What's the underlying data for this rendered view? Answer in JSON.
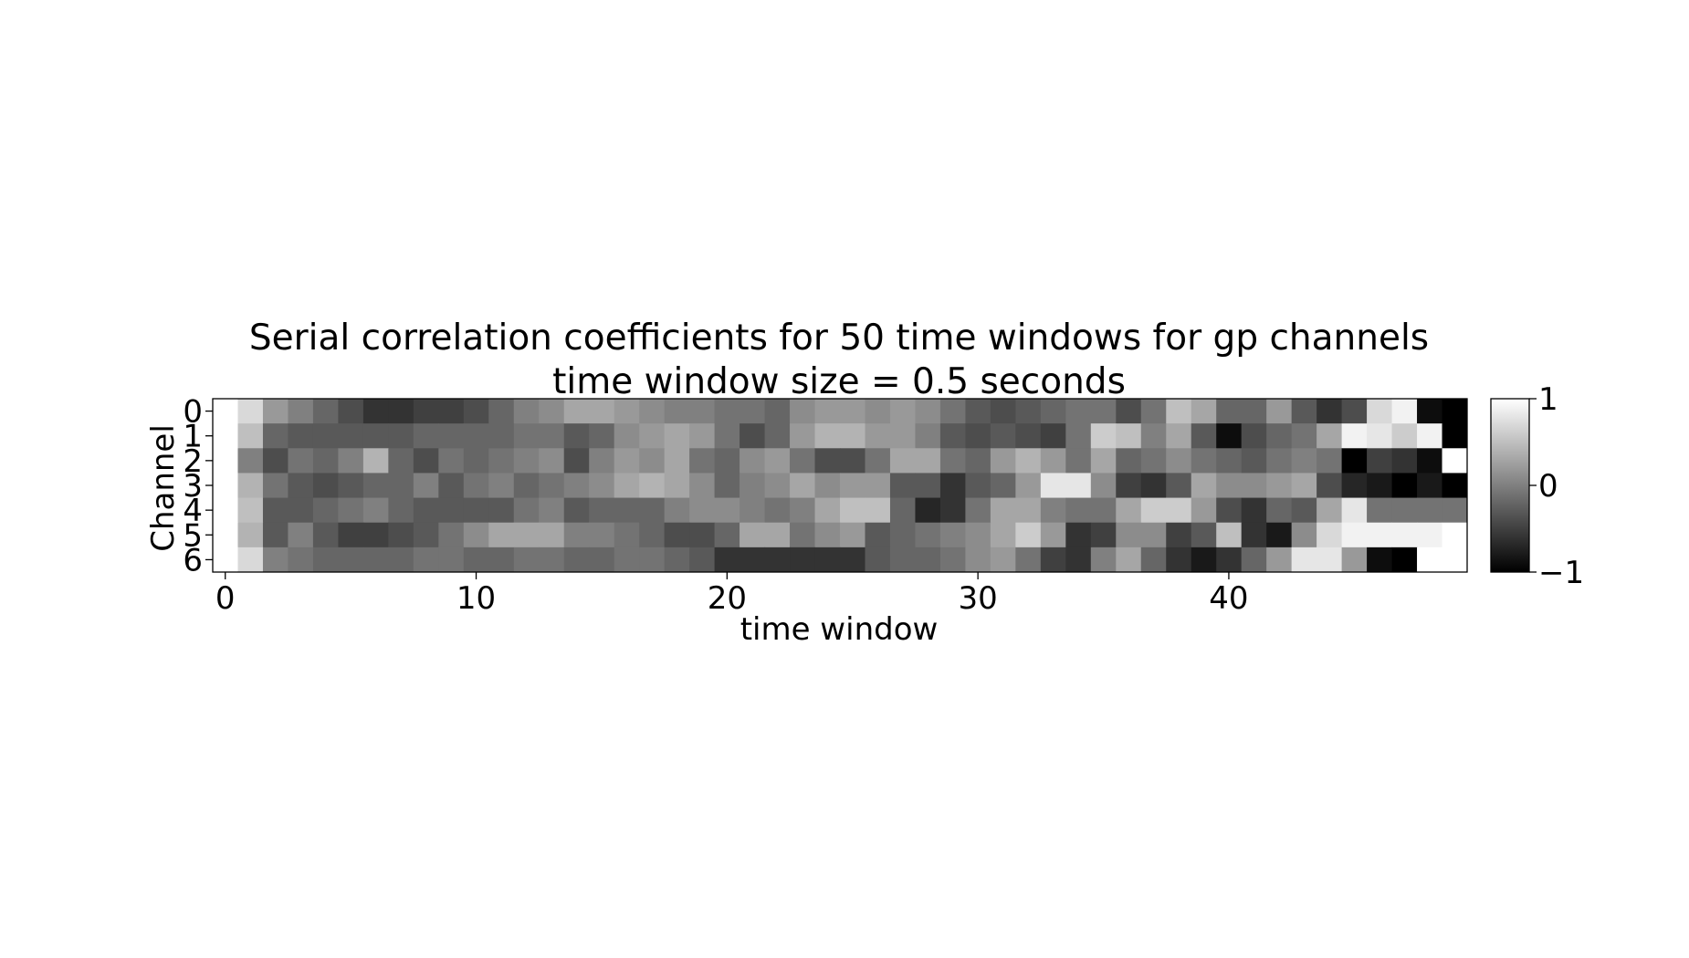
{
  "chart_data": {
    "type": "heatmap",
    "title": "Serial correlation coefficients for 50 time windows for gp channels\ntime window size = 0.5 seconds",
    "title_lines": [
      "Serial correlation coefficients for 50 time windows for gp channels",
      "time window size = 0.5 seconds"
    ],
    "xlabel": "time window",
    "ylabel": "Channel",
    "x_ticks": [
      0,
      10,
      20,
      30,
      40
    ],
    "y_ticks": [
      0,
      1,
      2,
      3,
      4,
      5,
      6
    ],
    "xlim": [
      -0.5,
      49.5
    ],
    "ylim": [
      6.5,
      -0.5
    ],
    "colormap": "gray",
    "colorbar": {
      "vmin": -1,
      "vmax": 1,
      "ticks": [
        1,
        0,
        -1
      ],
      "tick_labels": [
        "1",
        "0",
        "−1"
      ]
    },
    "rows": [
      [
        1.0,
        0.7,
        0.2,
        0.0,
        -0.2,
        -0.4,
        -0.6,
        -0.6,
        -0.5,
        -0.5,
        -0.4,
        -0.2,
        0.0,
        0.1,
        0.3,
        0.3,
        0.2,
        0.1,
        0.0,
        0.0,
        -0.1,
        -0.1,
        -0.2,
        0.1,
        0.2,
        0.2,
        0.1,
        0.2,
        0.1,
        -0.1,
        -0.3,
        -0.4,
        -0.3,
        -0.2,
        -0.1,
        -0.1,
        -0.4,
        -0.1,
        0.5,
        0.3,
        -0.2,
        -0.2,
        0.2,
        -0.3,
        -0.6,
        -0.4,
        0.7,
        0.9,
        -0.9,
        -1.0
      ],
      [
        1.0,
        0.5,
        -0.2,
        -0.3,
        -0.3,
        -0.3,
        -0.3,
        -0.3,
        -0.2,
        -0.2,
        -0.2,
        -0.2,
        -0.1,
        -0.1,
        -0.3,
        -0.2,
        0.1,
        0.2,
        0.3,
        0.2,
        -0.1,
        -0.4,
        -0.2,
        0.2,
        0.4,
        0.4,
        0.2,
        0.2,
        0.0,
        -0.3,
        -0.4,
        -0.3,
        -0.4,
        -0.5,
        -0.1,
        0.6,
        0.5,
        0.0,
        0.3,
        -0.3,
        -0.9,
        -0.4,
        -0.2,
        -0.1,
        0.3,
        0.9,
        0.8,
        0.6,
        0.9,
        -1.0
      ],
      [
        1.0,
        0.0,
        -0.4,
        -0.1,
        -0.2,
        0.0,
        0.4,
        -0.2,
        -0.4,
        -0.1,
        -0.2,
        -0.1,
        0.0,
        0.1,
        -0.4,
        0.0,
        0.2,
        0.1,
        0.3,
        -0.1,
        -0.2,
        0.1,
        0.2,
        -0.1,
        -0.4,
        -0.4,
        -0.1,
        0.3,
        0.3,
        -0.1,
        -0.2,
        0.2,
        0.4,
        0.2,
        -0.1,
        0.3,
        -0.2,
        -0.1,
        0.1,
        -0.1,
        -0.2,
        -0.3,
        -0.1,
        0.0,
        -0.1,
        -1.0,
        -0.5,
        -0.6,
        -0.9,
        1.0
      ],
      [
        1.0,
        0.4,
        -0.1,
        -0.3,
        -0.4,
        -0.3,
        -0.2,
        -0.2,
        0.0,
        -0.3,
        -0.1,
        0.0,
        -0.2,
        -0.1,
        0.0,
        0.1,
        0.3,
        0.4,
        0.3,
        0.1,
        -0.2,
        0.0,
        0.1,
        0.3,
        0.1,
        0.2,
        0.2,
        -0.3,
        -0.3,
        -0.6,
        -0.3,
        -0.2,
        0.2,
        0.8,
        0.8,
        0.1,
        -0.5,
        -0.6,
        -0.3,
        0.3,
        0.1,
        0.1,
        0.2,
        0.3,
        -0.4,
        -0.7,
        -0.8,
        -1.0,
        -0.8,
        -1.0
      ],
      [
        1.0,
        0.5,
        -0.3,
        -0.3,
        -0.2,
        -0.1,
        0.0,
        -0.2,
        -0.3,
        -0.3,
        -0.3,
        -0.3,
        -0.1,
        0.0,
        -0.3,
        -0.2,
        -0.2,
        -0.2,
        0.0,
        0.1,
        0.1,
        0.0,
        -0.1,
        0.0,
        0.3,
        0.5,
        0.5,
        -0.2,
        -0.7,
        -0.6,
        -0.1,
        0.3,
        0.3,
        0.0,
        -0.1,
        -0.1,
        0.3,
        0.6,
        0.6,
        0.2,
        -0.4,
        -0.6,
        -0.2,
        -0.3,
        0.3,
        0.8,
        -0.1,
        -0.1,
        -0.1,
        -0.1
      ],
      [
        1.0,
        0.4,
        -0.3,
        0.0,
        -0.3,
        -0.5,
        -0.5,
        -0.4,
        -0.3,
        -0.1,
        0.1,
        0.3,
        0.3,
        0.3,
        0.0,
        0.0,
        -0.1,
        -0.2,
        -0.4,
        -0.4,
        -0.2,
        0.3,
        0.3,
        -0.1,
        0.1,
        0.2,
        -0.3,
        -0.2,
        -0.1,
        0.0,
        0.1,
        0.3,
        0.6,
        0.2,
        -0.6,
        -0.5,
        0.1,
        0.1,
        -0.5,
        -0.3,
        0.5,
        -0.6,
        -0.8,
        0.1,
        0.7,
        0.9,
        0.9,
        0.9,
        0.9,
        1.0
      ],
      [
        1.0,
        0.7,
        0.0,
        -0.1,
        -0.2,
        -0.2,
        -0.2,
        -0.2,
        -0.1,
        -0.1,
        -0.2,
        -0.2,
        -0.1,
        -0.1,
        -0.2,
        -0.2,
        -0.1,
        -0.1,
        -0.2,
        -0.3,
        -0.6,
        -0.6,
        -0.6,
        -0.6,
        -0.6,
        -0.6,
        -0.3,
        -0.2,
        -0.2,
        -0.1,
        0.1,
        0.2,
        -0.1,
        -0.5,
        -0.6,
        0.0,
        0.3,
        -0.2,
        -0.6,
        -0.8,
        -0.6,
        -0.2,
        0.2,
        0.8,
        0.8,
        0.2,
        -0.9,
        -1.0,
        1.0,
        1.0
      ]
    ]
  }
}
